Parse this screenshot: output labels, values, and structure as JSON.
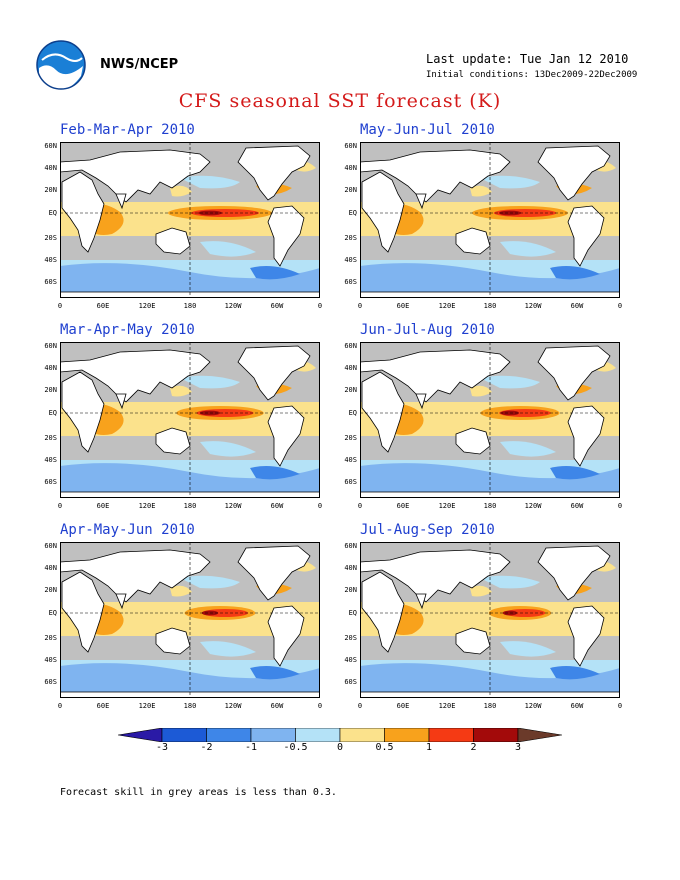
{
  "header": {
    "agency": "NWS/NCEP",
    "last_update": "Last update: Tue Jan 12 2010",
    "initial_conditions": "Initial conditions: 13Dec2009-22Dec2009",
    "title": "CFS seasonal SST forecast (K)"
  },
  "panels": [
    {
      "title": "Feb-Mar-Apr 2010"
    },
    {
      "title": "May-Jun-Jul 2010"
    },
    {
      "title": "Mar-Apr-May 2010"
    },
    {
      "title": "Jun-Jul-Aug 2010"
    },
    {
      "title": "Apr-May-Jun 2010"
    },
    {
      "title": "Jul-Aug-Sep 2010"
    }
  ],
  "axes": {
    "lat_labels": [
      "60N",
      "40N",
      "20N",
      "EQ",
      "20S",
      "40S",
      "60S"
    ],
    "lon_labels": [
      "0",
      "60E",
      "120E",
      "180",
      "120W",
      "60W",
      "0"
    ]
  },
  "colorbar": {
    "labels": [
      "-3",
      "-2",
      "-1",
      "-0.5",
      "0",
      "0.5",
      "1",
      "2",
      "3"
    ],
    "colors": [
      "#2a1aa6",
      "#1c5ad6",
      "#3e86e8",
      "#7fb4f0",
      "#b4e2f7",
      "#fbe28c",
      "#f8a21c",
      "#f53a14",
      "#a30a0a",
      "#6b3a2a"
    ]
  },
  "footnote": "Forecast skill in grey areas is less than 0.3."
}
